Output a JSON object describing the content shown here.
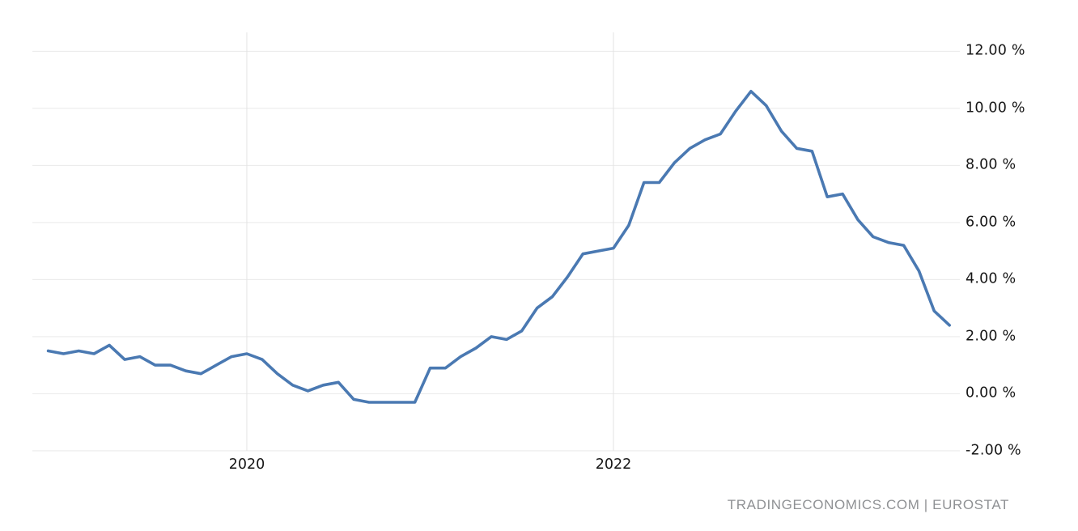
{
  "chart_data": {
    "type": "line",
    "title": "",
    "unit": "%",
    "grid": true,
    "legend_position": "none",
    "line_color": "#4a79b2",
    "gridline_color": "#e9e9e9",
    "vertical_gridline_color": "#e3e3e3",
    "x": [
      "2018-12",
      "2019-01",
      "2019-02",
      "2019-03",
      "2019-04",
      "2019-05",
      "2019-06",
      "2019-07",
      "2019-08",
      "2019-09",
      "2019-10",
      "2019-11",
      "2019-12",
      "2020-01",
      "2020-02",
      "2020-03",
      "2020-04",
      "2020-05",
      "2020-06",
      "2020-07",
      "2020-08",
      "2020-09",
      "2020-10",
      "2020-11",
      "2020-12",
      "2021-01",
      "2021-02",
      "2021-03",
      "2021-04",
      "2021-05",
      "2021-06",
      "2021-07",
      "2021-08",
      "2021-09",
      "2021-10",
      "2021-11",
      "2021-12",
      "2022-01",
      "2022-02",
      "2022-03",
      "2022-04",
      "2022-05",
      "2022-06",
      "2022-07",
      "2022-08",
      "2022-09",
      "2022-10",
      "2022-11",
      "2022-12",
      "2023-01",
      "2023-02",
      "2023-03",
      "2023-04",
      "2023-05",
      "2023-06",
      "2023-07",
      "2023-08",
      "2023-09",
      "2023-10",
      "2023-11"
    ],
    "values": [
      1.5,
      1.4,
      1.5,
      1.4,
      1.7,
      1.2,
      1.3,
      1.0,
      1.0,
      0.8,
      0.7,
      1.0,
      1.3,
      1.4,
      1.2,
      0.7,
      0.3,
      0.1,
      0.3,
      0.4,
      -0.2,
      -0.3,
      -0.3,
      -0.3,
      -0.3,
      0.9,
      0.9,
      1.3,
      1.6,
      2.0,
      1.9,
      2.2,
      3.0,
      3.4,
      4.1,
      4.9,
      5.0,
      5.1,
      5.9,
      7.4,
      7.4,
      8.1,
      8.6,
      8.9,
      9.1,
      9.9,
      10.6,
      10.1,
      9.2,
      8.6,
      8.5,
      6.9,
      7.0,
      6.1,
      5.5,
      5.3,
      5.2,
      4.3,
      2.9,
      2.4
    ],
    "x_ticks": [
      {
        "label": "2020",
        "month": "2020-01"
      },
      {
        "label": "2022",
        "month": "2022-01"
      }
    ],
    "y_ticks": [
      {
        "value": 12,
        "label": "12.00 %"
      },
      {
        "value": 10,
        "label": "10.00 %"
      },
      {
        "value": 8,
        "label": "8.00 %"
      },
      {
        "value": 6,
        "label": "6.00 %"
      },
      {
        "value": 4,
        "label": "4.00 %"
      },
      {
        "value": 2,
        "label": "2.00 %"
      },
      {
        "value": 0,
        "label": "0.00 %"
      },
      {
        "value": -2,
        "label": "-2.00 %"
      }
    ],
    "ylim": [
      -2,
      12
    ],
    "xlabel": "",
    "ylabel": "",
    "source_note": "TRADINGECONOMICS.COM | EUROSTAT"
  }
}
